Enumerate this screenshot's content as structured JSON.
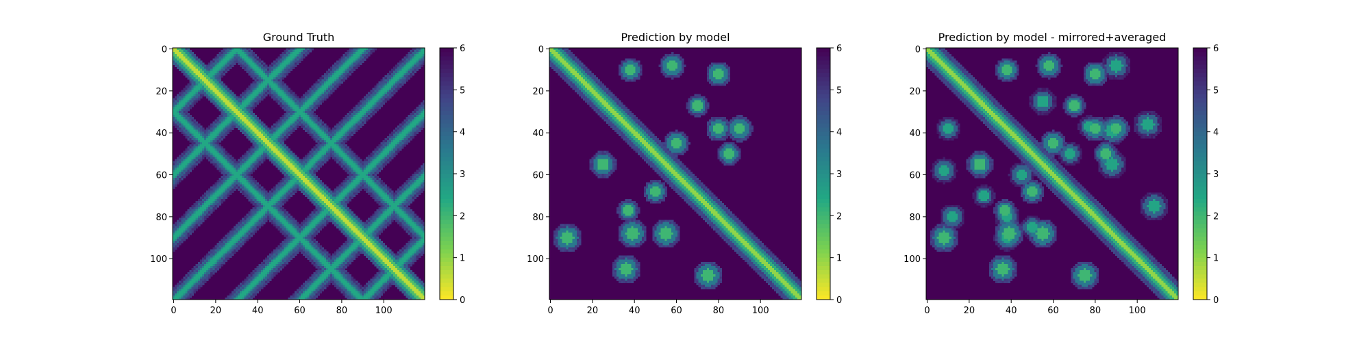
{
  "chart_data": [
    {
      "type": "heatmap",
      "title": "Ground Truth",
      "variant": "ground_truth",
      "matrix_size": 120,
      "x_ticks": [
        0,
        20,
        40,
        60,
        80,
        100
      ],
      "y_ticks": [
        0,
        20,
        40,
        60,
        80,
        100
      ],
      "xlim": [
        0,
        119
      ],
      "ylim": [
        119,
        0
      ],
      "colorbar": {
        "min": 0,
        "max": 6,
        "ticks": [
          0,
          1,
          2,
          3,
          4,
          5,
          6
        ]
      },
      "colormap": "viridis_r",
      "diagonal_offsets": [
        -30,
        0,
        30
      ],
      "anti_diagonal_sums": [
        30,
        60,
        90,
        120,
        150,
        180,
        210
      ]
    },
    {
      "type": "heatmap",
      "title": "Prediction by model",
      "variant": "prediction",
      "matrix_size": 120,
      "x_ticks": [
        0,
        20,
        40,
        60,
        80,
        100
      ],
      "y_ticks": [
        0,
        20,
        40,
        60,
        80,
        100
      ],
      "xlim": [
        0,
        119
      ],
      "ylim": [
        119,
        0
      ],
      "colorbar": {
        "min": 0,
        "max": 6,
        "ticks": [
          0,
          1,
          2,
          3,
          4,
          5,
          6
        ]
      },
      "colormap": "viridis_r",
      "contact_blobs": [
        [
          38,
          80
        ],
        [
          38,
          90
        ],
        [
          50,
          85
        ],
        [
          77,
          37
        ],
        [
          88,
          39
        ],
        [
          88,
          55
        ],
        [
          10,
          38
        ],
        [
          8,
          58
        ],
        [
          12,
          80
        ],
        [
          27,
          70
        ],
        [
          45,
          60
        ],
        [
          55,
          25
        ],
        [
          68,
          50
        ],
        [
          90,
          8
        ],
        [
          105,
          36
        ],
        [
          108,
          75
        ]
      ]
    },
    {
      "type": "heatmap",
      "title": "Prediction by model - mirrored+averaged",
      "variant": "prediction_mirrored",
      "matrix_size": 120,
      "x_ticks": [
        0,
        20,
        40,
        60,
        80,
        100
      ],
      "y_ticks": [
        0,
        20,
        40,
        60,
        80,
        100
      ],
      "xlim": [
        0,
        119
      ],
      "ylim": [
        119,
        0
      ],
      "colorbar": {
        "min": 0,
        "max": 6,
        "ticks": [
          0,
          1,
          2,
          3,
          4,
          5,
          6
        ]
      },
      "colormap": "viridis_r"
    }
  ],
  "colors": {
    "viridis_r": [
      "#fde725",
      "#7ad151",
      "#22a884",
      "#2a788e",
      "#414487",
      "#440154"
    ]
  }
}
